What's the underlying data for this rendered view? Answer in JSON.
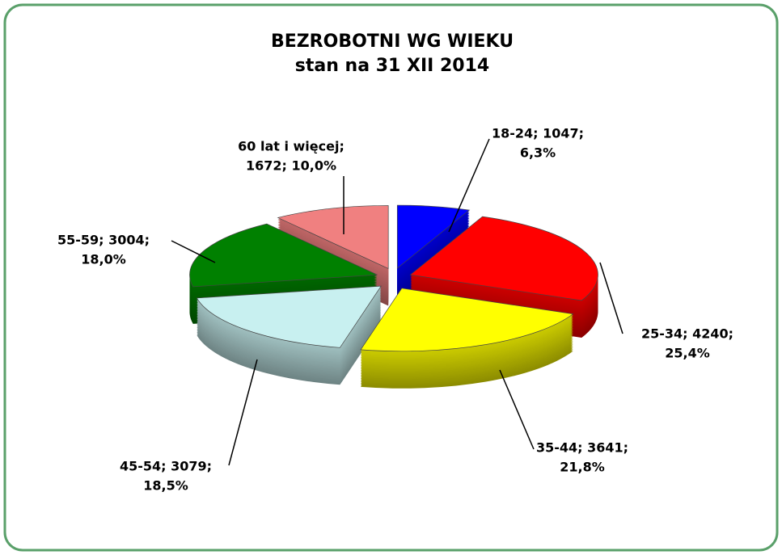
{
  "chart_data": {
    "type": "pie3d",
    "title": [
      "BEZROBOTNI WG WIEKU",
      "stan na 31 XII 2014"
    ],
    "categories": [
      "18-24",
      "25-34",
      "35-44",
      "45-54",
      "55-59",
      "60 lat i więcej"
    ],
    "values": [
      1047,
      4240,
      3641,
      3079,
      3004,
      1672
    ],
    "value_labels": [
      [
        "18-24; 1047;",
        "6,3%"
      ],
      [
        "25-34; 4240;",
        "25,4%"
      ],
      [
        "35-44; 3641;",
        "21,8%"
      ],
      [
        "45-54; 3079;",
        "18,5%"
      ],
      [
        "55-59; 3004;",
        "18,0%"
      ],
      [
        "60 lat i więcej;",
        "1672; 10,0%"
      ]
    ],
    "colors": [
      "#0000ff",
      "#ff0000",
      "#ffff00",
      "#c8f0f0",
      "#008000",
      "#f08080"
    ]
  }
}
